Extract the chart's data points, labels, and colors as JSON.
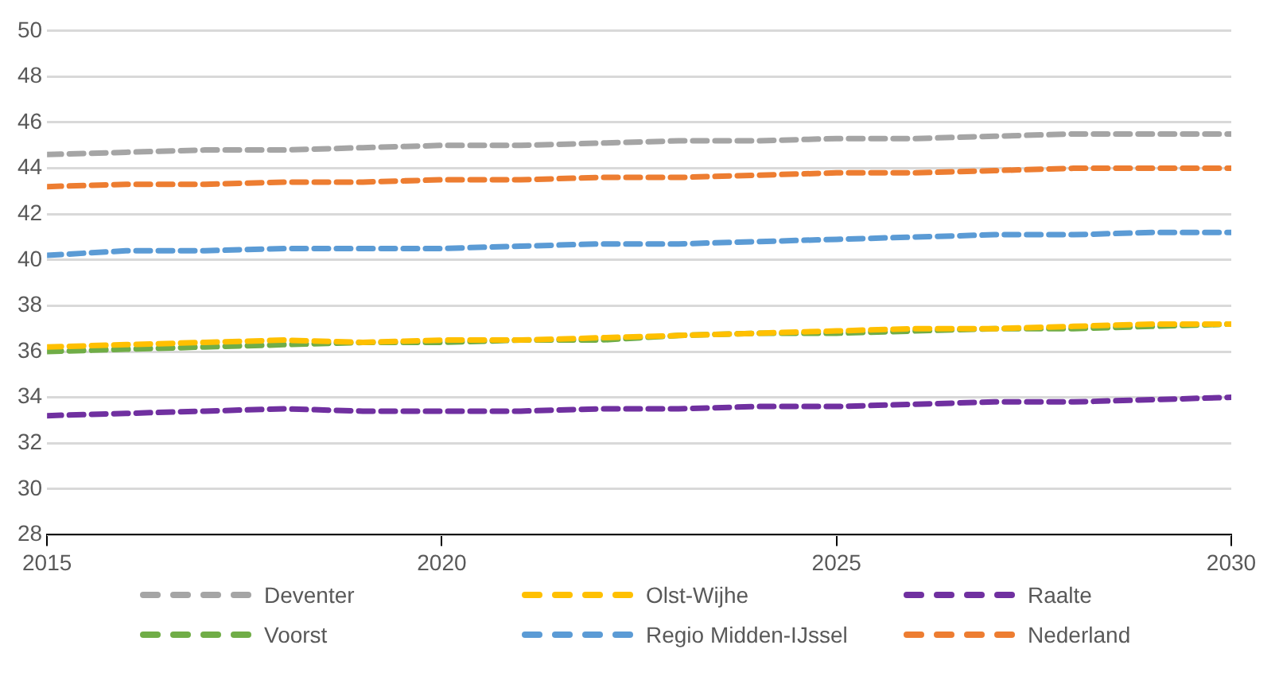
{
  "chart_data": {
    "type": "line",
    "x": [
      2015,
      2016,
      2017,
      2018,
      2019,
      2020,
      2021,
      2022,
      2023,
      2024,
      2025,
      2026,
      2027,
      2028,
      2029,
      2030
    ],
    "series": [
      {
        "name": "Deventer",
        "color": "#a5a5a5",
        "values": [
          44.6,
          44.7,
          44.8,
          44.8,
          44.9,
          45.0,
          45.0,
          45.1,
          45.2,
          45.2,
          45.3,
          45.3,
          45.4,
          45.5,
          45.5,
          45.5
        ]
      },
      {
        "name": "Olst-Wijhe",
        "color": "#ffc000",
        "values": [
          36.2,
          36.3,
          36.4,
          36.5,
          36.4,
          36.5,
          36.5,
          36.6,
          36.7,
          36.8,
          36.9,
          37.0,
          37.0,
          37.1,
          37.2,
          37.2
        ]
      },
      {
        "name": "Raalte",
        "color": "#7030a0",
        "values": [
          33.2,
          33.3,
          33.4,
          33.5,
          33.4,
          33.4,
          33.4,
          33.5,
          33.5,
          33.6,
          33.6,
          33.7,
          33.8,
          33.8,
          33.9,
          34.0
        ]
      },
      {
        "name": "Voorst",
        "color": "#70ad47",
        "values": [
          36.0,
          36.1,
          36.2,
          36.3,
          36.4,
          36.4,
          36.5,
          36.5,
          36.7,
          36.8,
          36.8,
          36.9,
          37.0,
          37.0,
          37.1,
          37.2
        ]
      },
      {
        "name": "Regio Midden-IJssel",
        "color": "#5b9bd5",
        "values": [
          40.2,
          40.4,
          40.4,
          40.5,
          40.5,
          40.5,
          40.6,
          40.7,
          40.7,
          40.8,
          40.9,
          41.0,
          41.1,
          41.1,
          41.2,
          41.2
        ]
      },
      {
        "name": "Nederland",
        "color": "#ed7d31",
        "values": [
          43.2,
          43.3,
          43.3,
          43.4,
          43.4,
          43.5,
          43.5,
          43.6,
          43.6,
          43.7,
          43.8,
          43.8,
          43.9,
          44.0,
          44.0,
          44.0
        ]
      }
    ],
    "xlim": [
      2015,
      2030
    ],
    "xticks": [
      2015,
      2020,
      2025,
      2030
    ],
    "ylim": [
      28,
      50
    ],
    "yticks": [
      28,
      30,
      32,
      34,
      36,
      38,
      40,
      42,
      44,
      46,
      48,
      50
    ],
    "grid": "y",
    "legend": "bottom",
    "line_style": "dashed",
    "marker": "none"
  }
}
